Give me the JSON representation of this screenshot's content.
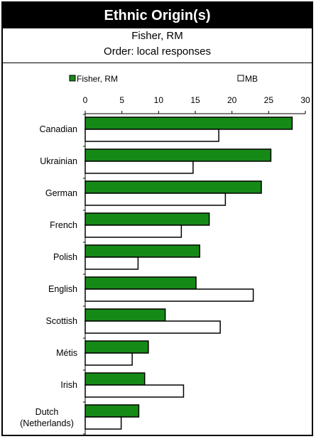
{
  "header": {
    "title": "Ethnic Origin(s)",
    "subtitle1": "Fisher, RM",
    "subtitle2": "Order: local responses"
  },
  "colors": {
    "series1": "#168A16",
    "series2": "#FFFFFF",
    "outline": "#000000"
  },
  "chart_data": {
    "type": "bar",
    "orientation": "horizontal",
    "xlim": [
      0,
      30
    ],
    "xticks": [
      0,
      5,
      10,
      15,
      20,
      25,
      30
    ],
    "legend_placement": "top",
    "grid": false,
    "categories": [
      "Canadian",
      "Ukrainian",
      "German",
      "French",
      "Polish",
      "English",
      "Scottish",
      "Métis",
      "Irish",
      "Dutch\n(Netherlands)"
    ],
    "series": [
      {
        "name": "Fisher, RM",
        "values": [
          28.2,
          25.3,
          24.0,
          16.9,
          15.6,
          15.1,
          10.9,
          8.6,
          8.1,
          7.3
        ]
      },
      {
        "name": "MB",
        "values": [
          18.2,
          14.7,
          19.1,
          13.1,
          7.2,
          22.9,
          18.4,
          6.4,
          13.4,
          4.9
        ]
      }
    ]
  }
}
